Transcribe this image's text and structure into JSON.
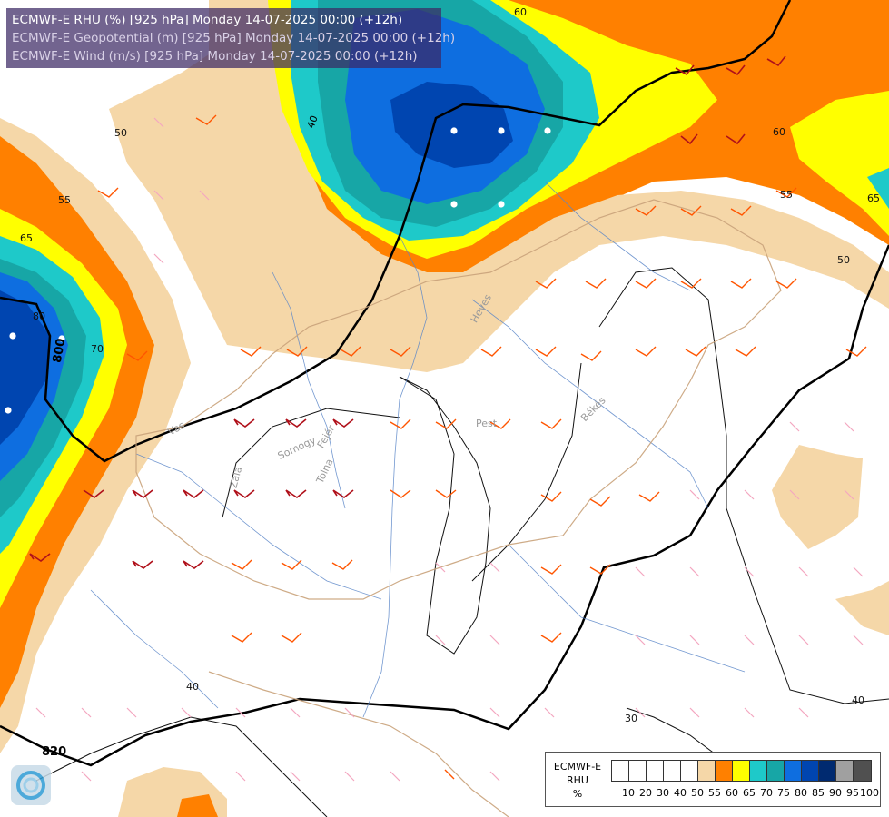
{
  "header": {
    "line1": "ECMWF-E RHU (%) [925 hPa] Monday 14-07-2025 00:00 (+12h)",
    "line2": "ECMWF-E Geopotential (m) [925 hPa] Monday 14-07-2025 00:00 (+12h)",
    "line3": "ECMWF-E Wind (m/s) [925 hPa] Monday 14-07-2025 00:00 (+12h)"
  },
  "legend": {
    "title_model": "ECMWF-E",
    "title_var": "RHU",
    "title_unit": "%",
    "levels": [
      "10",
      "20",
      "30",
      "40",
      "50",
      "55",
      "60",
      "65",
      "70",
      "75",
      "80",
      "85",
      "90",
      "95",
      "100"
    ],
    "colors": [
      "#ffffff",
      "#ffffff",
      "#ffffff",
      "#ffffff",
      "#ffffff",
      "#f5d7a8",
      "#ff8000",
      "#ffff00",
      "#1ec9c9",
      "#17a6a6",
      "#0e6ee0",
      "#0045b0",
      "#002a70",
      "#a0a0a0",
      "#505050"
    ]
  },
  "map_labels": {
    "rh_contours": [
      "60",
      "50",
      "55",
      "65",
      "40",
      "30",
      "70",
      "80",
      "60",
      "55",
      "50",
      "65",
      "40"
    ],
    "geopotential": [
      "800",
      "820",
      "40"
    ],
    "places": [
      "Pest",
      "Békés",
      "Vas",
      "Somogy",
      "Fejér",
      "Tolna",
      "Zala",
      "Heves"
    ]
  },
  "colors": {
    "orange": "#ff8000",
    "yellow": "#ffff00",
    "tan": "#f5d7a8",
    "cyan": "#1ec9c9",
    "teal": "#17a6a6",
    "blue": "#0e6ee0",
    "navy": "#0045b0",
    "dark_navy": "#002a70",
    "wind_red": "#b0101a",
    "wind_orange": "#ff5500",
    "wind_pink": "#f4a6c0"
  }
}
